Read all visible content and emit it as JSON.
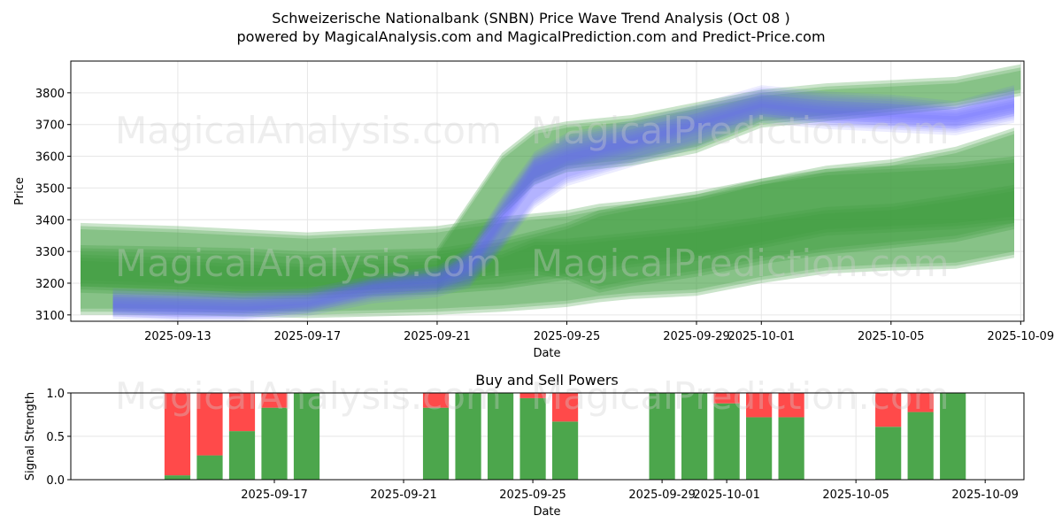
{
  "title_line1": "Schweizerische Nationalbank (SNBN) Price Wave Trend Analysis (Oct 08 )",
  "title_line2": "powered by MagicalAnalysis.com and MagicalPrediction.com and Predict-Price.com",
  "watermarks": [
    "MagicalAnalysis.com",
    "MagicalPrediction.com",
    "MagicalAnalysis.com",
    "MagicalPrediction.com",
    "MagicalAnalysis.com",
    "MagicalPrediction.com"
  ],
  "colors": {
    "buy": "#4ca64c",
    "sell": "#ff4a4a",
    "green_band": "#3f9f3f",
    "blue_band": "#6464ff"
  },
  "chart_data": [
    {
      "type": "area",
      "title": "",
      "xlabel": "Date",
      "ylabel": "Price",
      "ylim": [
        3080,
        3900
      ],
      "xlim": [
        -1.3,
        28.1
      ],
      "yticks": [
        3100,
        3200,
        3300,
        3400,
        3500,
        3600,
        3700,
        3800
      ],
      "xticks": [
        {
          "label": "2025-09-13",
          "x": 2
        },
        {
          "label": "2025-09-17",
          "x": 6
        },
        {
          "label": "2025-09-21",
          "x": 10
        },
        {
          "label": "2025-09-25",
          "x": 14
        },
        {
          "label": "2025-09-29",
          "x": 18
        },
        {
          "label": "2025-10-01",
          "x": 20
        },
        {
          "label": "2025-10-05",
          "x": 24
        },
        {
          "label": "2025-10-09",
          "x": 28
        }
      ],
      "grid": true,
      "x_unit": "days since 2025-09-11",
      "series": [
        {
          "name": "green_wave_low",
          "color": "green",
          "x": [
            -1,
            2,
            4,
            6,
            8,
            10,
            12,
            14,
            15,
            16,
            18,
            20,
            22,
            24,
            26,
            27.8
          ],
          "lower": [
            3110,
            3110,
            3105,
            3100,
            3105,
            3110,
            3120,
            3135,
            3150,
            3160,
            3170,
            3210,
            3240,
            3250,
            3255,
            3290
          ],
          "upper": [
            3380,
            3370,
            3360,
            3350,
            3360,
            3370,
            3400,
            3420,
            3440,
            3450,
            3480,
            3520,
            3550,
            3560,
            3570,
            3590
          ]
        },
        {
          "name": "green_wave_mid",
          "color": "green",
          "x": [
            -1,
            2,
            4,
            6,
            8,
            10,
            12,
            14,
            15,
            16,
            18,
            20,
            22,
            24,
            26,
            27.8
          ],
          "lower": [
            3180,
            3170,
            3160,
            3160,
            3170,
            3175,
            3190,
            3220,
            3240,
            3260,
            3280,
            3320,
            3360,
            3370,
            3380,
            3400
          ],
          "upper": [
            3310,
            3305,
            3300,
            3290,
            3295,
            3300,
            3330,
            3380,
            3420,
            3440,
            3470,
            3520,
            3560,
            3580,
            3620,
            3680
          ]
        },
        {
          "name": "green_wave_core",
          "color": "green",
          "x": [
            -1,
            2,
            4,
            6,
            8,
            10,
            12,
            13,
            14,
            15,
            16,
            18,
            20,
            22,
            24,
            26,
            27.8
          ],
          "lower": [
            3200,
            3190,
            3180,
            3180,
            3190,
            3200,
            3230,
            3240,
            3220,
            3180,
            3200,
            3230,
            3270,
            3300,
            3320,
            3340,
            3380
          ],
          "upper": [
            3280,
            3270,
            3260,
            3250,
            3260,
            3270,
            3290,
            3330,
            3330,
            3340,
            3350,
            3370,
            3400,
            3430,
            3440,
            3470,
            3500
          ]
        },
        {
          "name": "green_upper_wave",
          "color": "green",
          "x": [
            10,
            11,
            12,
            13,
            14,
            16,
            18,
            20,
            22,
            24,
            26,
            28
          ],
          "lower": [
            3180,
            3300,
            3420,
            3520,
            3560,
            3580,
            3620,
            3700,
            3720,
            3740,
            3760,
            3800
          ],
          "upper": [
            3300,
            3450,
            3600,
            3680,
            3700,
            3720,
            3760,
            3800,
            3820,
            3830,
            3840,
            3880
          ]
        },
        {
          "name": "blue_wave_1",
          "color": "blue",
          "x": [
            0,
            2,
            4,
            6,
            8,
            10,
            11,
            12,
            13,
            14,
            16,
            18,
            20,
            22,
            24,
            26,
            27.8
          ],
          "lower": [
            3100,
            3095,
            3095,
            3110,
            3150,
            3170,
            3200,
            3320,
            3450,
            3520,
            3580,
            3640,
            3720,
            3700,
            3690,
            3680,
            3720
          ],
          "upper": [
            3170,
            3165,
            3160,
            3170,
            3210,
            3240,
            3300,
            3460,
            3600,
            3660,
            3700,
            3750,
            3810,
            3790,
            3780,
            3760,
            3810
          ]
        },
        {
          "name": "blue_wave_2",
          "color": "blue",
          "x": [
            0,
            2,
            4,
            6,
            8,
            10,
            11,
            12,
            13,
            14,
            16,
            18,
            20,
            22,
            24,
            26,
            27.8
          ],
          "lower": [
            3110,
            3100,
            3100,
            3120,
            3170,
            3190,
            3230,
            3380,
            3520,
            3570,
            3620,
            3680,
            3740,
            3720,
            3710,
            3700,
            3740
          ],
          "upper": [
            3150,
            3145,
            3140,
            3150,
            3200,
            3220,
            3280,
            3430,
            3580,
            3620,
            3670,
            3720,
            3780,
            3760,
            3750,
            3740,
            3780
          ]
        }
      ]
    },
    {
      "type": "bar",
      "title": "Buy and Sell Powers",
      "xlabel": "Date",
      "ylabel": "Signal Strength",
      "ylim": [
        0,
        1
      ],
      "xlim": [
        -0.3,
        29.2
      ],
      "yticks": [
        "0.0",
        "0.5",
        "1.0"
      ],
      "xticks": [
        {
          "label": "2025-09-17",
          "x": 6
        },
        {
          "label": "2025-09-21",
          "x": 10
        },
        {
          "label": "2025-09-25",
          "x": 14
        },
        {
          "label": "2025-09-29",
          "x": 18
        },
        {
          "label": "2025-10-01",
          "x": 20
        },
        {
          "label": "2025-10-05",
          "x": 24
        },
        {
          "label": "2025-10-09",
          "x": 28
        }
      ],
      "x_unit": "days since 2025-09-11",
      "x": [
        3,
        4,
        5,
        6,
        7,
        11,
        12,
        13,
        14,
        15,
        18,
        19,
        20,
        21,
        22,
        25,
        26,
        27
      ],
      "series": [
        {
          "name": "Buy",
          "color": "buy",
          "values": [
            0.05,
            0.28,
            0.56,
            0.83,
            1.0,
            0.83,
            1.0,
            1.0,
            0.94,
            0.67,
            1.0,
            1.0,
            0.88,
            0.72,
            0.72,
            0.61,
            0.78,
            1.0
          ]
        },
        {
          "name": "Sell",
          "color": "sell",
          "values": [
            0.95,
            0.72,
            0.44,
            0.17,
            0.0,
            0.17,
            0.0,
            0.0,
            0.06,
            0.33,
            0.0,
            0.0,
            0.12,
            0.28,
            0.28,
            0.39,
            0.22,
            0.0
          ]
        }
      ]
    }
  ]
}
